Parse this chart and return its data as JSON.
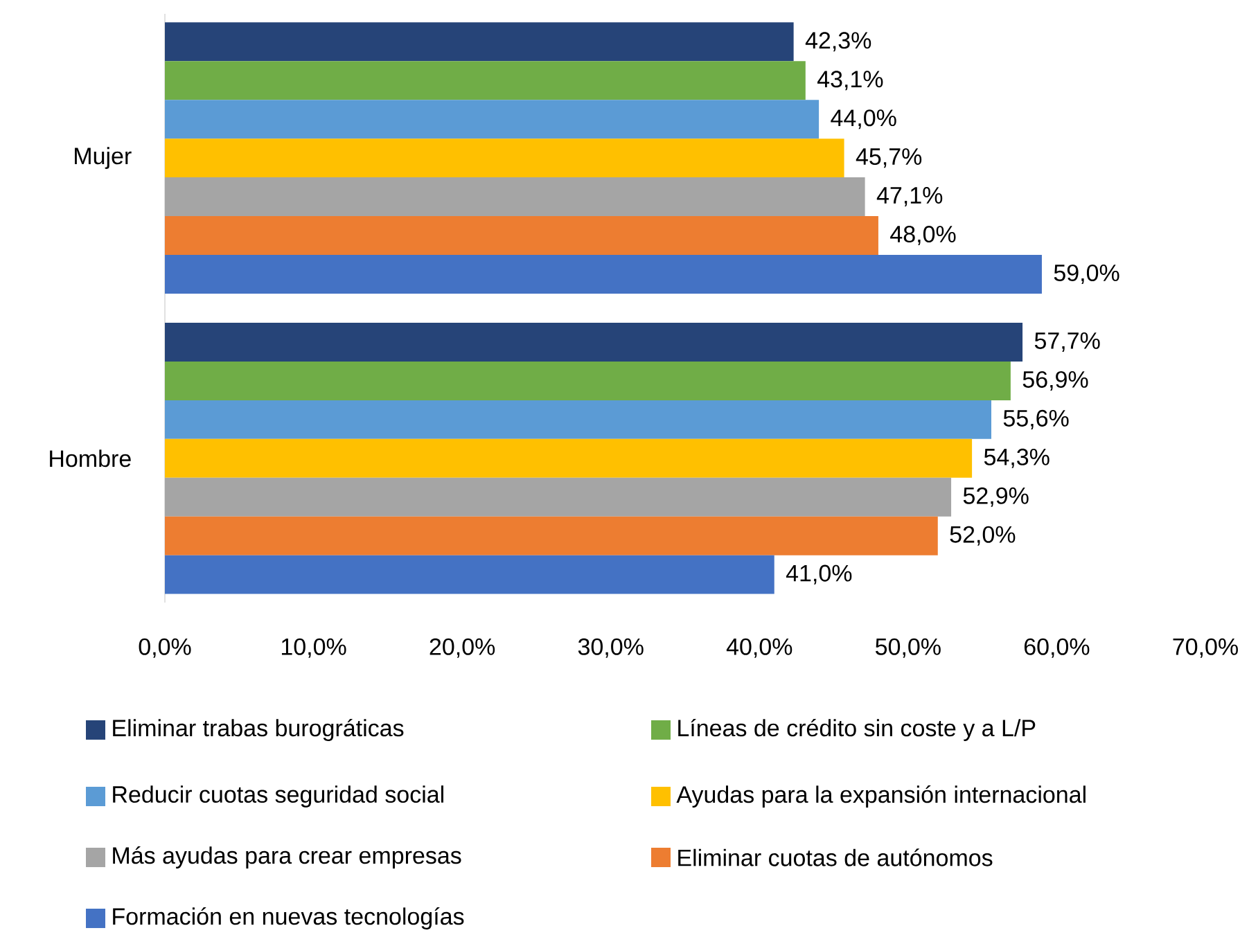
{
  "chart_data": {
    "type": "bar",
    "orientation": "horizontal",
    "categories": [
      "Mujer",
      "Hombre"
    ],
    "series": [
      {
        "name": "Eliminar trabas burográticas",
        "color": "#264478",
        "values": [
          42.3,
          57.7
        ],
        "value_labels": [
          "42,3%",
          "57,7%"
        ]
      },
      {
        "name": "Líneas de crédito sin coste y a L/P",
        "color": "#70ad47",
        "values": [
          43.1,
          56.9
        ],
        "value_labels": [
          "43,1%",
          "56,9%"
        ]
      },
      {
        "name": "Reducir cuotas seguridad social",
        "color": "#5b9bd5",
        "values": [
          44.0,
          55.6
        ],
        "value_labels": [
          "44,0%",
          "55,6%"
        ]
      },
      {
        "name": "Ayudas para la expansión internacional",
        "color": "#ffc000",
        "values": [
          45.7,
          54.3
        ],
        "value_labels": [
          "45,7%",
          "54,3%"
        ]
      },
      {
        "name": "Más ayudas para crear empresas",
        "color": "#a5a5a5",
        "values": [
          47.1,
          52.9
        ],
        "value_labels": [
          "47,1%",
          "52,9%"
        ]
      },
      {
        "name": "Eliminar cuotas de autónomos",
        "color": "#ed7d31",
        "values": [
          48.0,
          52.0
        ],
        "value_labels": [
          "48,0%",
          "52,0%"
        ]
      },
      {
        "name": "Formación en nuevas tecnologías",
        "color": "#4472c4",
        "values": [
          59.0,
          41.0
        ],
        "value_labels": [
          "59,0%",
          "41,0%"
        ]
      }
    ],
    "xlim": [
      0,
      70
    ],
    "xticks": [
      {
        "value": 0,
        "label": "0,0%"
      },
      {
        "value": 10,
        "label": "10,0%"
      },
      {
        "value": 20,
        "label": "20,0%"
      },
      {
        "value": 30,
        "label": "30,0%"
      },
      {
        "value": 40,
        "label": "40,0%"
      },
      {
        "value": 50,
        "label": "50,0%"
      },
      {
        "value": 60,
        "label": "60,0%"
      },
      {
        "value": 70,
        "label": "70,0%"
      }
    ],
    "legend": "bottom"
  }
}
